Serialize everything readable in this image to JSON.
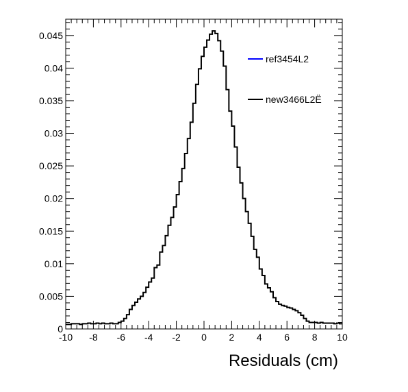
{
  "chart_data": {
    "type": "line",
    "style": "histogram-step",
    "title": "",
    "xlabel": "Residuals (cm)",
    "ylabel": "",
    "xlim": [
      -10,
      10
    ],
    "ylim": [
      0,
      0.0475
    ],
    "grid": false,
    "legend_position": "top-right",
    "x_ticks": [
      -10,
      -8,
      -6,
      -4,
      -2,
      0,
      2,
      4,
      6,
      8,
      10
    ],
    "x_tick_labels": [
      "-10",
      "-8",
      "-6",
      "-4",
      "-2",
      "0",
      "2",
      "4",
      "6",
      "8",
      "10"
    ],
    "y_ticks": [
      0,
      0.005,
      0.01,
      0.015,
      0.02,
      0.025,
      0.03,
      0.035,
      0.04,
      0.045
    ],
    "y_tick_labels": [
      "0",
      "0.005",
      "0.01",
      "0.015",
      "0.02",
      "0.025",
      "0.03",
      "0.035",
      "0.04",
      "0.045"
    ],
    "bin_edges": [
      -10,
      -9.8,
      -9.6,
      -9.4,
      -9.2,
      -9,
      -8.8,
      -8.6,
      -8.4,
      -8.2,
      -8,
      -7.8,
      -7.6,
      -7.4,
      -7.2,
      -7,
      -6.8,
      -6.6,
      -6.4,
      -6.2,
      -6,
      -5.8,
      -5.6,
      -5.4,
      -5.2,
      -5,
      -4.8,
      -4.6,
      -4.4,
      -4.2,
      -4,
      -3.8,
      -3.6,
      -3.4,
      -3.2,
      -3,
      -2.8,
      -2.6,
      -2.4,
      -2.2,
      -2,
      -1.8,
      -1.6,
      -1.4,
      -1.2,
      -1,
      -0.8,
      -0.6,
      -0.4,
      -0.2,
      0,
      0.2,
      0.4,
      0.6,
      0.8,
      1,
      1.2,
      1.4,
      1.6,
      1.8,
      2,
      2.2,
      2.4,
      2.6,
      2.8,
      3,
      3.2,
      3.4,
      3.6,
      3.8,
      4,
      4.2,
      4.4,
      4.6,
      4.8,
      5,
      5.2,
      5.4,
      5.6,
      5.8,
      6,
      6.2,
      6.4,
      6.6,
      6.8,
      7,
      7.2,
      7.4,
      7.6,
      7.8,
      8,
      8.2,
      8.4,
      8.6,
      8.8,
      9,
      9.2,
      9.4,
      9.6,
      9.8,
      10
    ],
    "series": [
      {
        "name": "ref3454L2",
        "color": "#0000ff",
        "values": []
      },
      {
        "name": "new3466L2Ë",
        "color": "#000000",
        "values": [
          0.0007,
          0.0007,
          0.0008,
          0.0008,
          0.0008,
          0.0007,
          0.0008,
          0.0008,
          0.0009,
          0.0008,
          0.0008,
          0.0009,
          0.0008,
          0.0009,
          0.0008,
          0.0008,
          0.0009,
          0.0008,
          0.0008,
          0.001,
          0.0012,
          0.0016,
          0.0022,
          0.003,
          0.0036,
          0.0041,
          0.0046,
          0.005,
          0.0056,
          0.0064,
          0.0072,
          0.0078,
          0.0094,
          0.0098,
          0.0118,
          0.0128,
          0.0143,
          0.0159,
          0.0171,
          0.0187,
          0.0206,
          0.0226,
          0.0246,
          0.0269,
          0.0292,
          0.0317,
          0.0346,
          0.0375,
          0.0399,
          0.0418,
          0.0432,
          0.0443,
          0.0452,
          0.0457,
          0.0453,
          0.0442,
          0.0426,
          0.0403,
          0.0367,
          0.0334,
          0.0311,
          0.0279,
          0.0248,
          0.0224,
          0.02,
          0.018,
          0.0162,
          0.0142,
          0.0122,
          0.011,
          0.0092,
          0.0082,
          0.0069,
          0.0063,
          0.0057,
          0.0048,
          0.0042,
          0.0038,
          0.0036,
          0.0035,
          0.0033,
          0.0032,
          0.003,
          0.0028,
          0.0025,
          0.0021,
          0.0016,
          0.0012,
          0.001,
          0.001,
          0.001,
          0.0009,
          0.001,
          0.0009,
          0.0009,
          0.0009,
          0.0009,
          0.0008,
          0.0009,
          0.0008
        ]
      }
    ]
  }
}
